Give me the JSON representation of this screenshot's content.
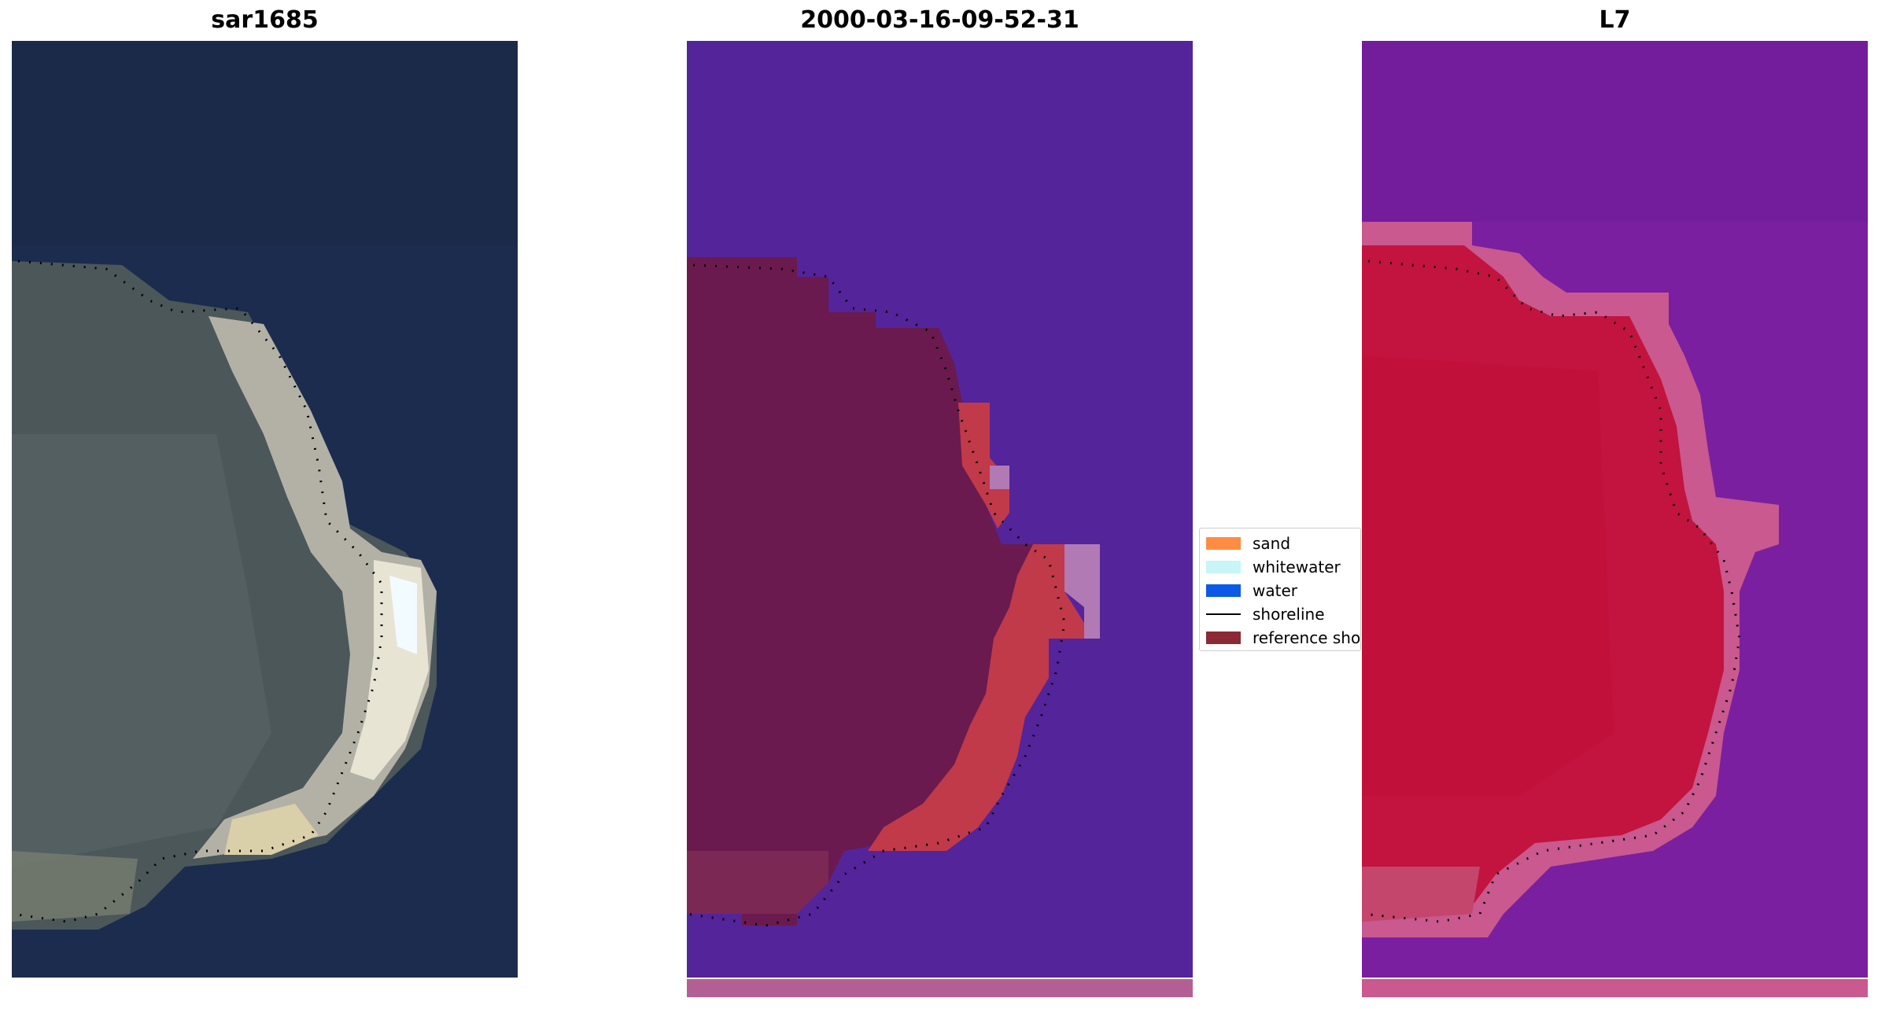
{
  "figure": {
    "panels": [
      {
        "title": "sar1685",
        "kind": "rgb-image"
      },
      {
        "title": "2000-03-16-09-52-31",
        "kind": "classified-image"
      },
      {
        "title": "L7",
        "kind": "index-image"
      }
    ],
    "legend": {
      "items": [
        {
          "label": "sand",
          "color": "#ff8c42",
          "marker": "patch"
        },
        {
          "label": "whitewater",
          "color": "#c8f5f5",
          "marker": "patch"
        },
        {
          "label": "water",
          "color": "#0a5ae6",
          "marker": "patch"
        },
        {
          "label": "shoreline",
          "color": "#000000",
          "marker": "line"
        },
        {
          "label": "reference shoreline buffer",
          "color": "#8b2a35",
          "marker": "patch"
        }
      ]
    },
    "colors": {
      "rgb_water": "#1c2c4e",
      "rgb_land": "#4d5a5c",
      "rgb_sand": "#e8ddc0",
      "class_water": "#54249a",
      "class_land": "#6a1a4e",
      "class_sand": "#c03a4a",
      "class_bottom_strip": "#b45f94",
      "index_water": "#7a1fa0",
      "index_land": "#c2143e",
      "index_edge": "#c9598e"
    }
  }
}
